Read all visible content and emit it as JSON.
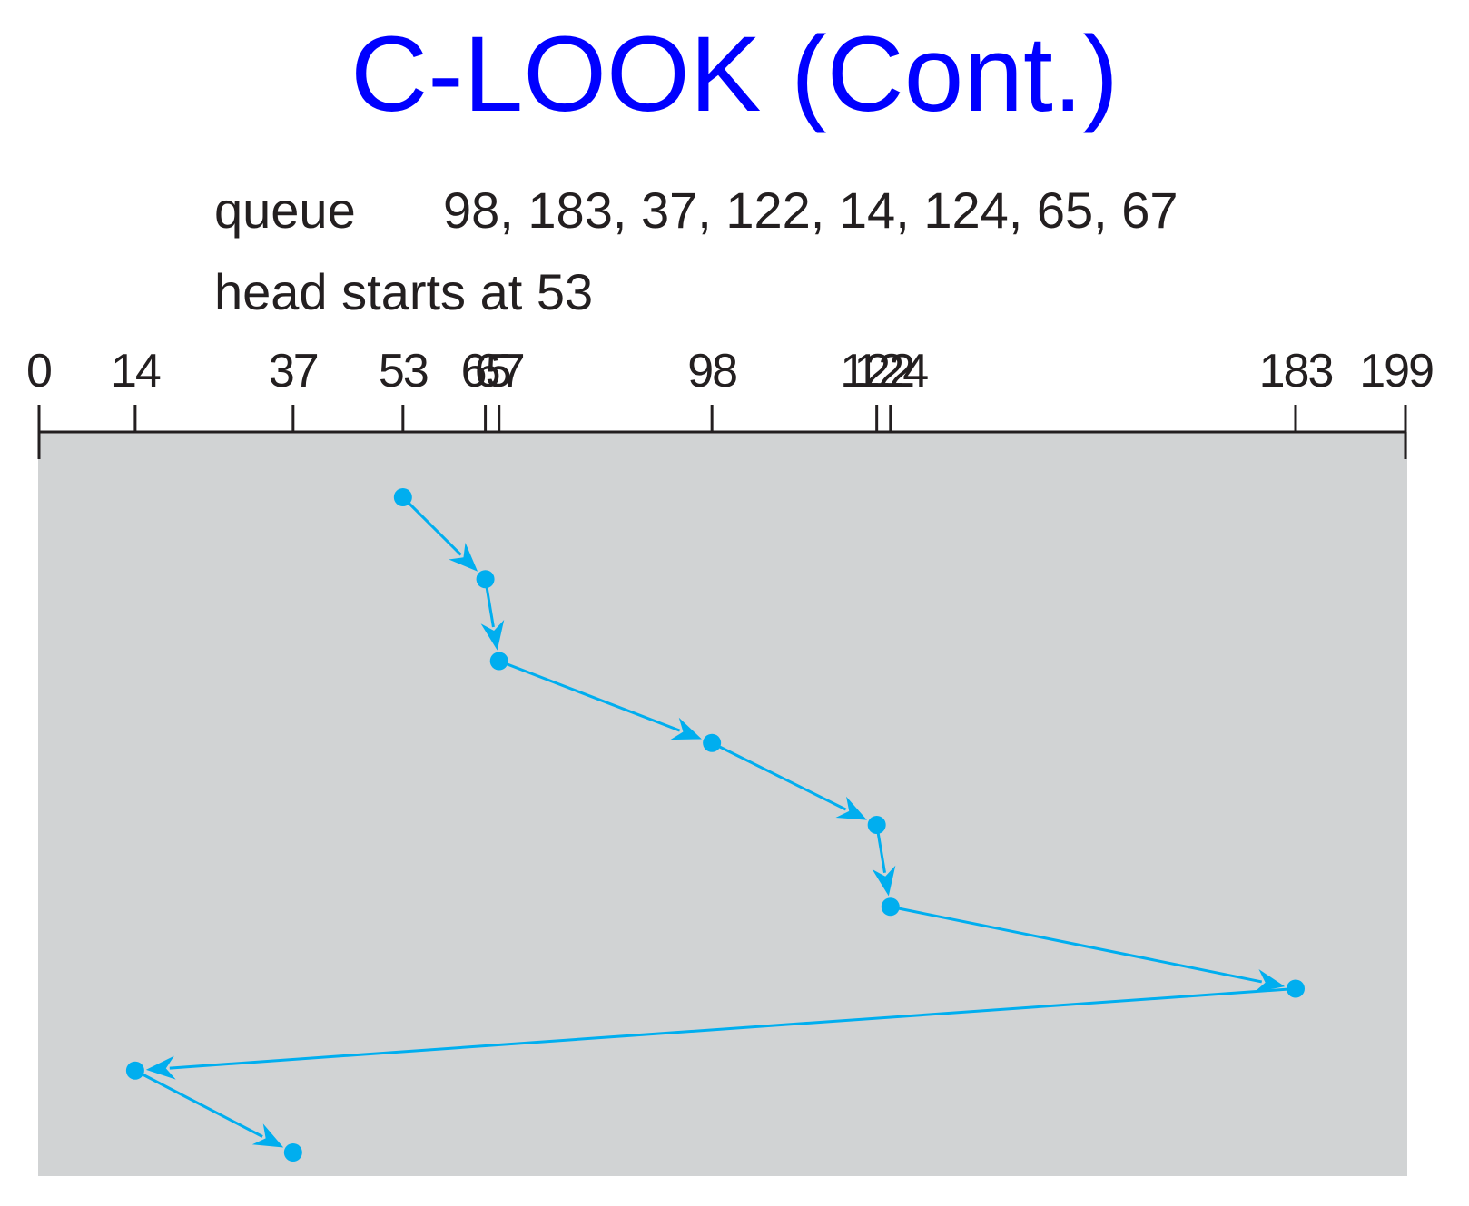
{
  "title": "C-LOOK (Cont.)",
  "queue": {
    "label": "queue",
    "values_text": "98, 183, 37, 122, 14, 124, 65, 67"
  },
  "head": {
    "label": "head starts at 53",
    "start": 53
  },
  "axis": {
    "min": 0,
    "max": 199,
    "ticks": [
      0,
      14,
      37,
      53,
      65,
      67,
      98,
      122,
      124,
      183,
      199
    ]
  },
  "path": [
    53,
    65,
    67,
    98,
    122,
    124,
    183,
    14,
    37
  ],
  "colors": {
    "title": "#0000ff",
    "text": "#231f20",
    "panel": "#d1d3d4",
    "path": "#00aeef",
    "axis": "#231f20"
  }
}
